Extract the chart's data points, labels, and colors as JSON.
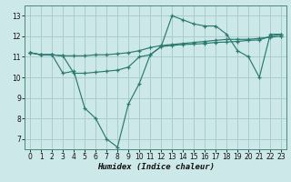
{
  "xlabel": "Humidex (Indice chaleur)",
  "background_color": "#cce8e8",
  "grid_color": "#aacccc",
  "line_color": "#2a7a6f",
  "xlim": [
    -0.5,
    23.5
  ],
  "ylim": [
    6.5,
    13.5
  ],
  "xticks": [
    0,
    1,
    2,
    3,
    4,
    5,
    6,
    7,
    8,
    9,
    10,
    11,
    12,
    13,
    14,
    15,
    16,
    17,
    18,
    19,
    20,
    21,
    22,
    23
  ],
  "yticks": [
    7,
    8,
    9,
    10,
    11,
    12,
    13
  ],
  "series": [
    [
      11.2,
      11.1,
      11.1,
      10.2,
      10.3,
      8.5,
      8.0,
      7.0,
      6.6,
      8.7,
      9.7,
      11.1,
      11.5,
      13.0,
      12.8,
      12.6,
      12.5,
      12.5,
      12.1,
      11.3,
      11.0,
      10.0,
      12.1,
      12.1
    ],
    [
      11.2,
      11.1,
      11.1,
      11.05,
      11.05,
      11.05,
      11.1,
      11.1,
      11.15,
      11.2,
      11.3,
      11.45,
      11.55,
      11.6,
      11.65,
      11.7,
      11.75,
      11.8,
      11.85,
      11.85,
      11.85,
      11.9,
      11.95,
      12.0
    ],
    [
      11.2,
      11.1,
      11.1,
      11.05,
      10.2,
      10.2,
      10.25,
      10.3,
      10.35,
      10.5,
      11.0,
      11.1,
      11.5,
      11.55,
      11.6,
      11.62,
      11.65,
      11.7,
      11.72,
      11.75,
      11.8,
      11.82,
      12.0,
      12.1
    ]
  ]
}
